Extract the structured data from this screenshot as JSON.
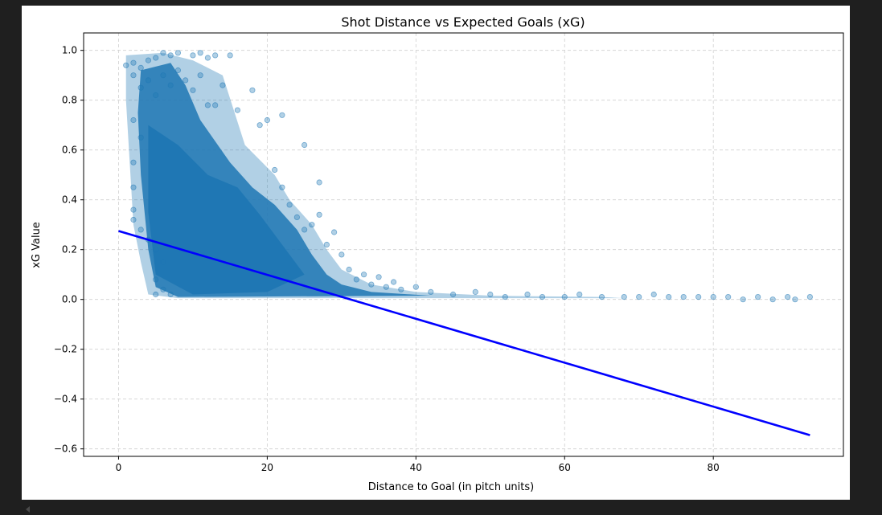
{
  "chart_data": {
    "type": "scatter",
    "title": "Shot Distance vs Expected Goals (xG)",
    "xlabel": "Distance to Goal (in pitch units)",
    "ylabel": "xG Value",
    "xlim": [
      -4.7,
      97.5
    ],
    "ylim": [
      -0.63,
      1.07
    ],
    "grid": true,
    "x_ticks": [
      0,
      20,
      40,
      60,
      80
    ],
    "x_tick_labels": [
      "0",
      "20",
      "40",
      "60",
      "80"
    ],
    "y_ticks": [
      -0.6,
      -0.4,
      -0.2,
      0.0,
      0.2,
      0.4,
      0.6,
      0.8,
      1.0
    ],
    "y_tick_labels": [
      "−0.6",
      "−0.4",
      "−0.2",
      "0.0",
      "0.2",
      "0.4",
      "0.6",
      "0.8",
      "1.0"
    ],
    "scatter_color": "#1f77b4",
    "scatter_alpha": 0.35,
    "regression_color": "#0000ff",
    "series": [
      {
        "kind": "scatter",
        "points": [
          [
            1,
            0.94
          ],
          [
            2,
            0.95
          ],
          [
            3,
            0.93
          ],
          [
            2,
            0.9
          ],
          [
            4,
            0.96
          ],
          [
            5,
            0.97
          ],
          [
            6,
            0.99
          ],
          [
            7,
            0.98
          ],
          [
            8,
            0.99
          ],
          [
            10,
            0.98
          ],
          [
            11,
            0.99
          ],
          [
            12,
            0.97
          ],
          [
            13,
            0.98
          ],
          [
            15,
            0.98
          ],
          [
            3,
            0.85
          ],
          [
            4,
            0.88
          ],
          [
            5,
            0.82
          ],
          [
            6,
            0.9
          ],
          [
            7,
            0.86
          ],
          [
            8,
            0.92
          ],
          [
            9,
            0.88
          ],
          [
            10,
            0.84
          ],
          [
            11,
            0.9
          ],
          [
            12,
            0.78
          ],
          [
            13,
            0.78
          ],
          [
            14,
            0.86
          ],
          [
            16,
            0.76
          ],
          [
            18,
            0.84
          ],
          [
            20,
            0.72
          ],
          [
            19,
            0.7
          ],
          [
            22,
            0.74
          ],
          [
            25,
            0.62
          ],
          [
            2,
            0.72
          ],
          [
            3,
            0.65
          ],
          [
            2,
            0.55
          ],
          [
            2,
            0.45
          ],
          [
            2,
            0.36
          ],
          [
            2,
            0.32
          ],
          [
            3,
            0.28
          ],
          [
            4,
            0.24
          ],
          [
            5,
            0.2
          ],
          [
            6,
            0.15
          ],
          [
            5,
            0.08
          ],
          [
            6,
            0.04
          ],
          [
            7,
            0.02
          ],
          [
            5,
            0.02
          ],
          [
            21,
            0.52
          ],
          [
            22,
            0.45
          ],
          [
            23,
            0.38
          ],
          [
            24,
            0.33
          ],
          [
            25,
            0.28
          ],
          [
            26,
            0.3
          ],
          [
            27,
            0.47
          ],
          [
            27,
            0.34
          ],
          [
            28,
            0.22
          ],
          [
            29,
            0.27
          ],
          [
            30,
            0.18
          ],
          [
            31,
            0.12
          ],
          [
            32,
            0.08
          ],
          [
            33,
            0.1
          ],
          [
            34,
            0.06
          ],
          [
            35,
            0.09
          ],
          [
            36,
            0.05
          ],
          [
            37,
            0.07
          ],
          [
            38,
            0.04
          ],
          [
            40,
            0.05
          ],
          [
            42,
            0.03
          ],
          [
            45,
            0.02
          ],
          [
            48,
            0.03
          ],
          [
            50,
            0.02
          ],
          [
            52,
            0.01
          ],
          [
            55,
            0.02
          ],
          [
            57,
            0.01
          ],
          [
            60,
            0.01
          ],
          [
            62,
            0.02
          ],
          [
            65,
            0.01
          ],
          [
            68,
            0.01
          ],
          [
            70,
            0.01
          ],
          [
            72,
            0.02
          ],
          [
            74,
            0.01
          ],
          [
            76,
            0.01
          ],
          [
            78,
            0.01
          ],
          [
            80,
            0.01
          ],
          [
            82,
            0.01
          ],
          [
            84,
            0.0
          ],
          [
            86,
            0.01
          ],
          [
            88,
            0.0
          ],
          [
            90,
            0.01
          ],
          [
            91,
            0.0
          ],
          [
            93,
            0.01
          ]
        ]
      },
      {
        "kind": "line",
        "name": "",
        "x": [
          0,
          93
        ],
        "y": [
          0.275,
          -0.545
        ]
      }
    ]
  }
}
